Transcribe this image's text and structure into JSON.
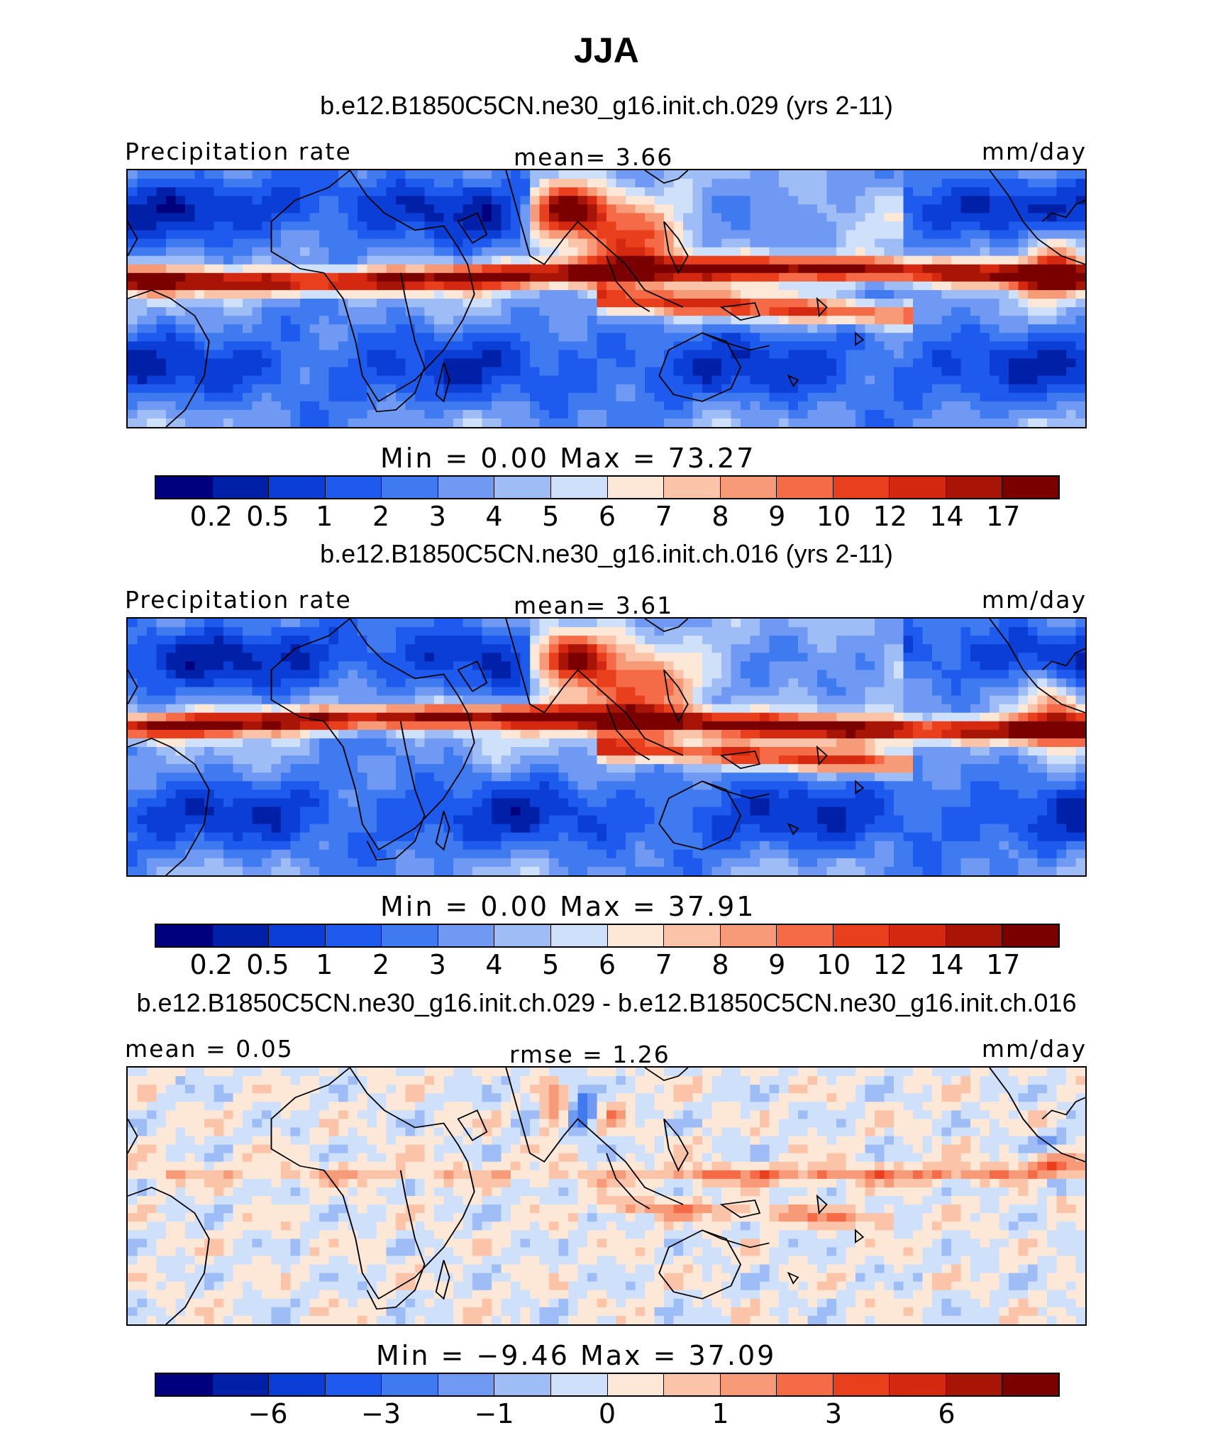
{
  "title": "JJA",
  "panels": [
    {
      "case_title": "b.e12.B1850C5CN.ne30_g16.init.ch.029 (yrs 2-11)",
      "left_label": "Precipitation  rate",
      "center_label": "mean=    3.66",
      "right_label": "mm/day",
      "stats": "Min  =     0.00  Max  =    73.27",
      "kind": "field"
    },
    {
      "case_title": "b.e12.B1850C5CN.ne30_g16.init.ch.016 (yrs 2-11)",
      "left_label": "Precipitation  rate",
      "center_label": "mean=    3.61",
      "right_label": "mm/day",
      "stats": "Min  =     0.00  Max  =    37.91",
      "kind": "field"
    },
    {
      "case_title": "b.e12.B1850C5CN.ne30_g16.init.ch.029 - b.e12.B1850C5CN.ne30_g16.init.ch.016",
      "left_label": "mean  =    0.05",
      "center_label": "rmse  =    1.26",
      "right_label": "mm/day",
      "stats": "Min  =    −9.46  Max  =    37.09",
      "kind": "diff"
    }
  ],
  "colorbar": {
    "colors": [
      "#00007f",
      "#0020a8",
      "#0a3ed6",
      "#1e5aee",
      "#3f7af0",
      "#6f99f2",
      "#9ebcf6",
      "#cfe0fa",
      "#fde8d8",
      "#fbc4a8",
      "#f79a78",
      "#f56b48",
      "#ea3f1c",
      "#d52810",
      "#a81405",
      "#7a0000"
    ],
    "field_ticks": [
      "0.2",
      "0.5",
      "1",
      "2",
      "3",
      "4",
      "5",
      "6",
      "7",
      "8",
      "9",
      "10",
      "12",
      "14",
      "17"
    ],
    "diff_ticks": [
      {
        "label": "−6",
        "boundary": 2
      },
      {
        "label": "−3",
        "boundary": 4
      },
      {
        "label": "−1",
        "boundary": 6
      },
      {
        "label": "0",
        "boundary": 8
      },
      {
        "label": "1",
        "boundary": 10
      },
      {
        "label": "3",
        "boundary": 12
      },
      {
        "label": "6",
        "boundary": 14
      }
    ]
  }
}
